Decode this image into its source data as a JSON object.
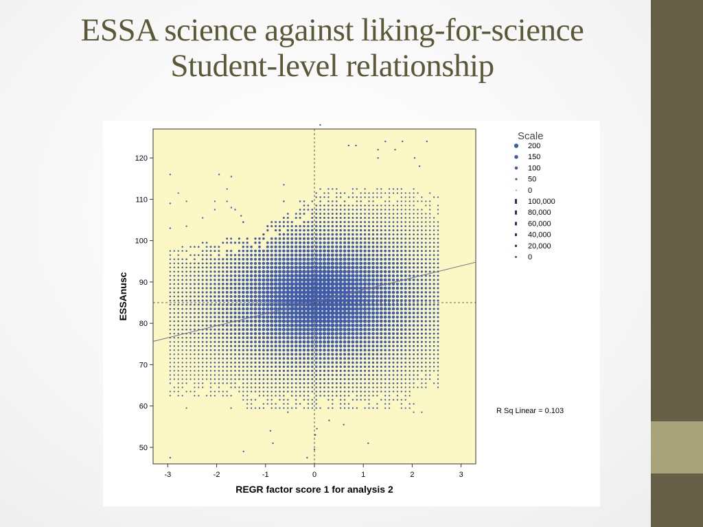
{
  "title": {
    "line1": "ESSA science against liking-for-science",
    "line2": "Student-level relationship"
  },
  "colors": {
    "accent_bar": "#665f48",
    "accent_band": "#a9a37b",
    "title_color": "#5b5838",
    "plot_bg": "#fbf8c6",
    "points": "#3f5bab"
  },
  "chart_data": {
    "type": "scatter",
    "title": "",
    "xlabel": "REGR factor score   1 for analysis 2",
    "ylabel": "ESSAnusc",
    "xlim": [
      -3.3,
      3.3
    ],
    "ylim": [
      46,
      127
    ],
    "xticks": [
      "-3",
      "-2",
      "-1",
      "0",
      "1",
      "2",
      "3"
    ],
    "yticks": [
      "50",
      "60",
      "70",
      "80",
      "90",
      "100",
      "110",
      "120"
    ],
    "reference_lines": {
      "x": 0,
      "y": 85
    },
    "fit_line": {
      "label": "R Sq Linear = 0.103",
      "intercept": 85.2,
      "slope": 2.9
    },
    "point_cloud": {
      "x_min": -2.95,
      "x_max": 2.6,
      "x_step": 0.083,
      "y_min": 58.5,
      "y_max": 113.5,
      "y_step": 1.0,
      "center_x": 0.1,
      "center_y": 86
    },
    "outliers": [
      {
        "x": 0.12,
        "y": 128
      },
      {
        "x": 0.7,
        "y": 123
      },
      {
        "x": 0.85,
        "y": 123
      },
      {
        "x": 1.45,
        "y": 124
      },
      {
        "x": 1.8,
        "y": 124
      },
      {
        "x": 2.3,
        "y": 124
      },
      {
        "x": 1.3,
        "y": 122
      },
      {
        "x": 1.65,
        "y": 122
      },
      {
        "x": 1.3,
        "y": 120
      },
      {
        "x": 2.05,
        "y": 120
      },
      {
        "x": 2.15,
        "y": 118
      },
      {
        "x": -2.95,
        "y": 116
      },
      {
        "x": -1.95,
        "y": 116
      },
      {
        "x": -1.7,
        "y": 115.5
      },
      {
        "x": -2.95,
        "y": 109
      },
      {
        "x": -1.7,
        "y": 108
      },
      {
        "x": -1.5,
        "y": 106
      },
      {
        "x": -2.95,
        "y": 103
      },
      {
        "x": -0.9,
        "y": 54
      },
      {
        "x": -0.85,
        "y": 51
      },
      {
        "x": -1.45,
        "y": 49
      },
      {
        "x": -0.15,
        "y": 47.5
      },
      {
        "x": -2.95,
        "y": 47.5
      },
      {
        "x": 0.0,
        "y": 49.5
      },
      {
        "x": 0.02,
        "y": 53
      },
      {
        "x": 0.05,
        "y": 54.5
      },
      {
        "x": 1.1,
        "y": 51
      },
      {
        "x": 0.6,
        "y": 55.5
      },
      {
        "x": 0.3,
        "y": 56.5
      }
    ],
    "legend": {
      "title": "Scale",
      "placement": "right",
      "entries": [
        "200",
        "150",
        "100",
        "50",
        "0",
        "100,000",
        "80,000",
        "60,000",
        "40,000",
        "20,000",
        "0"
      ],
      "marker_sizes": [
        200,
        150,
        100,
        50,
        0
      ],
      "bar_heights": [
        100000,
        80000,
        60000,
        40000,
        20000,
        0
      ]
    }
  }
}
